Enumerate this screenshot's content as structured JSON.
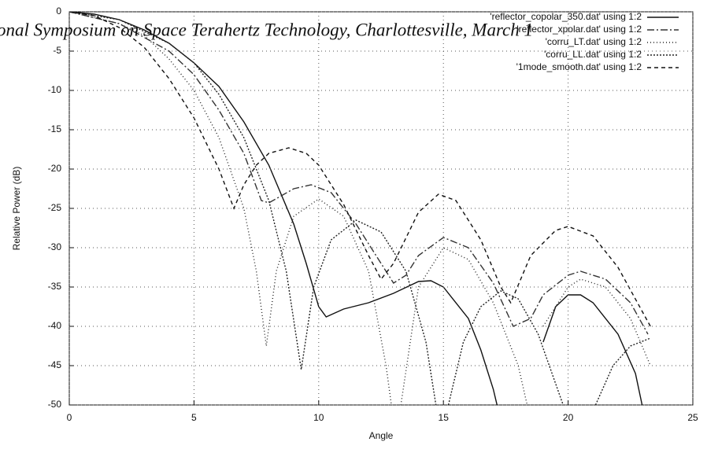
{
  "header_text": "onal Symposium on Space Terahertz Technology, Charlottesville, March 1",
  "chart_data": {
    "type": "line",
    "xlabel": "Angle",
    "ylabel": "Relative Power (dB)",
    "xlim": [
      0,
      25
    ],
    "xticks": [
      0,
      5,
      10,
      15,
      20,
      25
    ],
    "ylim": [
      -50,
      0
    ],
    "yticks": [
      0,
      -5,
      -10,
      -15,
      -20,
      -25,
      -30,
      -35,
      -40,
      -45,
      -50
    ],
    "grid": true,
    "legend": "top-right",
    "series": [
      {
        "name": "'reflector_copolar_350.dat' using 1:2",
        "color": "#111111",
        "dash": "none",
        "x": [
          0,
          1,
          2,
          3,
          4,
          5,
          6,
          7,
          8,
          9,
          9.5,
          10,
          10.3,
          11,
          12,
          13,
          14,
          14.5,
          15,
          16,
          16.5,
          17,
          17.3,
          18,
          19,
          19.5,
          20,
          20.5,
          21,
          22,
          22.7,
          23
        ],
        "values": [
          0,
          -0.3,
          -1,
          -2.3,
          -4,
          -6.5,
          -9.5,
          -14,
          -19.5,
          -27,
          -32,
          -37.5,
          -38.8,
          -37.8,
          -37,
          -35.8,
          -34.3,
          -34.2,
          -35,
          -39,
          -43,
          -48,
          -52,
          null,
          -42,
          -37.5,
          -36,
          -36,
          -37,
          -41,
          -46,
          -50.5
        ]
      },
      {
        "name": "'reflector_xpolar.dat' using 1:2",
        "color": "#333333",
        "dash": "9 3 2 3",
        "x": [
          0,
          2,
          4,
          5,
          6,
          7,
          7.7,
          8,
          9,
          9.7,
          10.5,
          11.5,
          12.5,
          13,
          13.5,
          14,
          15,
          16,
          17,
          17.8,
          18.5,
          19,
          20,
          20.5,
          21.5,
          22.5,
          23.2
        ],
        "values": [
          0,
          -1.5,
          -5,
          -8,
          -12.5,
          -18,
          -24,
          -24.3,
          -22.5,
          -22,
          -23,
          -27,
          -32,
          -34.5,
          -33.5,
          -31,
          -28.7,
          -30,
          -34.5,
          -40,
          -39,
          -36,
          -33.5,
          -33,
          -34,
          -37,
          -41
        ]
      },
      {
        "name": "'corru_LT.dat' using 1:2",
        "color": "#222222",
        "dash": "1 3",
        "x": [
          0,
          2,
          3,
          4,
          5,
          6,
          7,
          7.5,
          7.9,
          8.3,
          9,
          10,
          11,
          12,
          12.7,
          13,
          13.1,
          13.2,
          14,
          15,
          16,
          17,
          18,
          18.5,
          18.7,
          19,
          20,
          20.5,
          21.5,
          22.5,
          23.3
        ],
        "values": [
          0,
          -1.5,
          -3,
          -6,
          -10,
          -16,
          -25,
          -33,
          -42.5,
          -33,
          -26,
          -23.8,
          -26,
          -33,
          -45,
          -52,
          null,
          -52,
          -35,
          -30,
          -31.5,
          -37,
          -45,
          -52,
          null,
          -40,
          -35,
          -34,
          -35,
          -39,
          -45
        ]
      },
      {
        "name": "'corru_LL.dat' using 1:2",
        "color": "#222222",
        "dash": "2 2",
        "x": [
          0,
          2,
          4,
          5,
          6,
          7,
          8,
          8.7,
          9.3,
          9.8,
          10.5,
          11.5,
          12.5,
          13.5,
          14.3,
          14.8,
          15,
          15.2,
          15.8,
          16.5,
          17.3,
          18,
          18.8,
          19.8,
          20.5,
          21.1,
          21.8,
          22.5,
          23.3
        ],
        "values": [
          0,
          -1,
          -4,
          -6.5,
          -10.5,
          -16,
          -24,
          -33,
          -45.5,
          -35,
          -29,
          -26.5,
          -28,
          -33,
          -42,
          -52,
          null,
          -50,
          -42,
          -37.5,
          -35.5,
          -36.5,
          -41,
          -50,
          null,
          -50,
          -45,
          -42.5,
          -41.5
        ]
      },
      {
        "name": "'1mode_smooth.dat' using 1:2",
        "color": "#111111",
        "dash": "5 4",
        "x": [
          0,
          1,
          2,
          3,
          4,
          5,
          6,
          6.6,
          7,
          7.5,
          8,
          8.8,
          9.5,
          10,
          11,
          12,
          12.5,
          13,
          14,
          14.8,
          15.5,
          16.5,
          17.3,
          17.7,
          18.5,
          19.5,
          20,
          21,
          22,
          23.3
        ],
        "values": [
          0,
          -0.5,
          -2,
          -4.5,
          -8.5,
          -13.5,
          -20,
          -25,
          -22,
          -19.5,
          -18,
          -17.3,
          -18,
          -19.5,
          -24.5,
          -31,
          -34,
          -32,
          -25.5,
          -23.2,
          -24,
          -29,
          -35,
          -37,
          -31,
          -27.8,
          -27.3,
          -28.5,
          -32.5,
          -40
        ]
      }
    ]
  }
}
